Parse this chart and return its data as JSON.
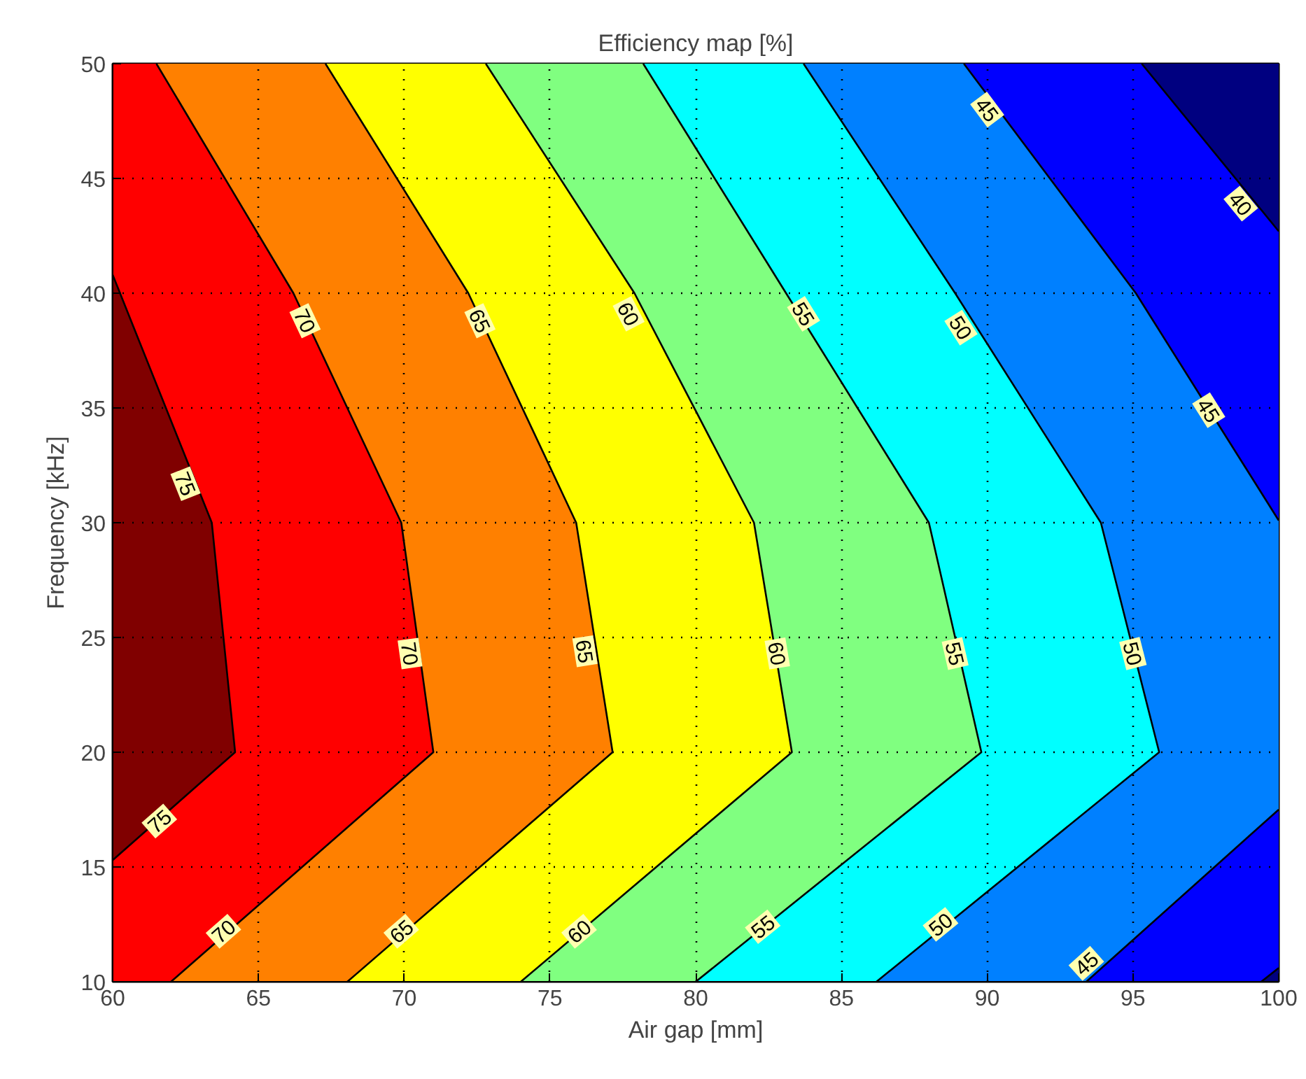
{
  "chart_data": {
    "type": "line",
    "title": "Efficiency map [%]",
    "xlabel": "Air gap [mm]",
    "ylabel": "Frequency [kHz]",
    "xlim": [
      60,
      100
    ],
    "ylim": [
      10,
      50
    ],
    "xticks": [
      60,
      65,
      70,
      75,
      80,
      85,
      90,
      95,
      100
    ],
    "yticks": [
      10,
      15,
      20,
      25,
      30,
      35,
      40,
      45,
      50
    ],
    "grid": true,
    "marker": "none",
    "line_style": "solid",
    "colors": [
      "#800000",
      "#ff0000",
      "#ff8000",
      "#ffff00",
      "#80ff80",
      "#00ffff",
      "#0080ff",
      "#0000ff",
      "#0000ff",
      "#000080",
      "#000080"
    ],
    "series": [
      {
        "color": "#000000",
        "x": [
          60,
          63.4,
          64.2,
          60
        ],
        "values": [
          40.8,
          30,
          20,
          15.3
        ]
      },
      {
        "color": "#000000",
        "x": [
          61.5,
          66.2,
          69.9,
          71.0,
          62.0
        ],
        "values": [
          50,
          40,
          30,
          20,
          10
        ]
      },
      {
        "color": "#000000",
        "x": [
          67.3,
          72.2,
          75.9,
          77.15,
          68.05
        ],
        "values": [
          50,
          40,
          30,
          20,
          10
        ]
      },
      {
        "color": "#000000",
        "x": [
          72.8,
          77.9,
          82.0,
          83.3,
          74.0
        ],
        "values": [
          50,
          40,
          30,
          20,
          10
        ]
      },
      {
        "color": "#000000",
        "x": [
          78.2,
          83.1,
          88.0,
          89.8,
          80.0
        ],
        "values": [
          50,
          40,
          30,
          20,
          10
        ]
      },
      {
        "color": "#000000",
        "x": [
          83.7,
          88.9,
          93.9,
          95.9,
          86.2
        ],
        "values": [
          50,
          40,
          30,
          20,
          10
        ]
      },
      {
        "color": "#000000",
        "x": [
          89.2,
          95.1,
          100
        ],
        "values": [
          50,
          40,
          30.1
        ]
      },
      {
        "color": "#000000",
        "x": [
          100,
          93.4
        ],
        "values": [
          17.5,
          10
        ]
      },
      {
        "color": "#000000",
        "x": [
          95.3,
          100
        ],
        "values": [
          50,
          42.7
        ]
      },
      {
        "color": "#000000",
        "x": [
          100,
          99.4
        ],
        "values": [
          10.6,
          10
        ]
      }
    ],
    "annotations": [
      {
        "text": "75",
        "x": 62.5,
        "y": 31.7
      },
      {
        "text": "75",
        "x": 61.6,
        "y": 17.0
      },
      {
        "text": "70",
        "x": 66.6,
        "y": 38.8
      },
      {
        "text": "70",
        "x": 70.2,
        "y": 24.3
      },
      {
        "text": "70",
        "x": 63.8,
        "y": 12.2
      },
      {
        "text": "65",
        "x": 72.6,
        "y": 38.8
      },
      {
        "text": "65",
        "x": 76.2,
        "y": 24.4
      },
      {
        "text": "65",
        "x": 69.9,
        "y": 12.2
      },
      {
        "text": "60",
        "x": 77.7,
        "y": 39.1
      },
      {
        "text": "60",
        "x": 82.8,
        "y": 24.3
      },
      {
        "text": "60",
        "x": 76.0,
        "y": 12.2
      },
      {
        "text": "55",
        "x": 83.7,
        "y": 39.1
      },
      {
        "text": "55",
        "x": 88.9,
        "y": 24.3
      },
      {
        "text": "55",
        "x": 82.3,
        "y": 12.4
      },
      {
        "text": "50",
        "x": 89.1,
        "y": 38.5
      },
      {
        "text": "50",
        "x": 95.0,
        "y": 24.3
      },
      {
        "text": "50",
        "x": 88.4,
        "y": 12.5
      },
      {
        "text": "45",
        "x": 90.0,
        "y": 48.0
      },
      {
        "text": "45",
        "x": 97.6,
        "y": 34.9
      },
      {
        "text": "45",
        "x": 93.4,
        "y": 10.8
      },
      {
        "text": "40",
        "x": 98.7,
        "y": 43.9
      }
    ]
  }
}
